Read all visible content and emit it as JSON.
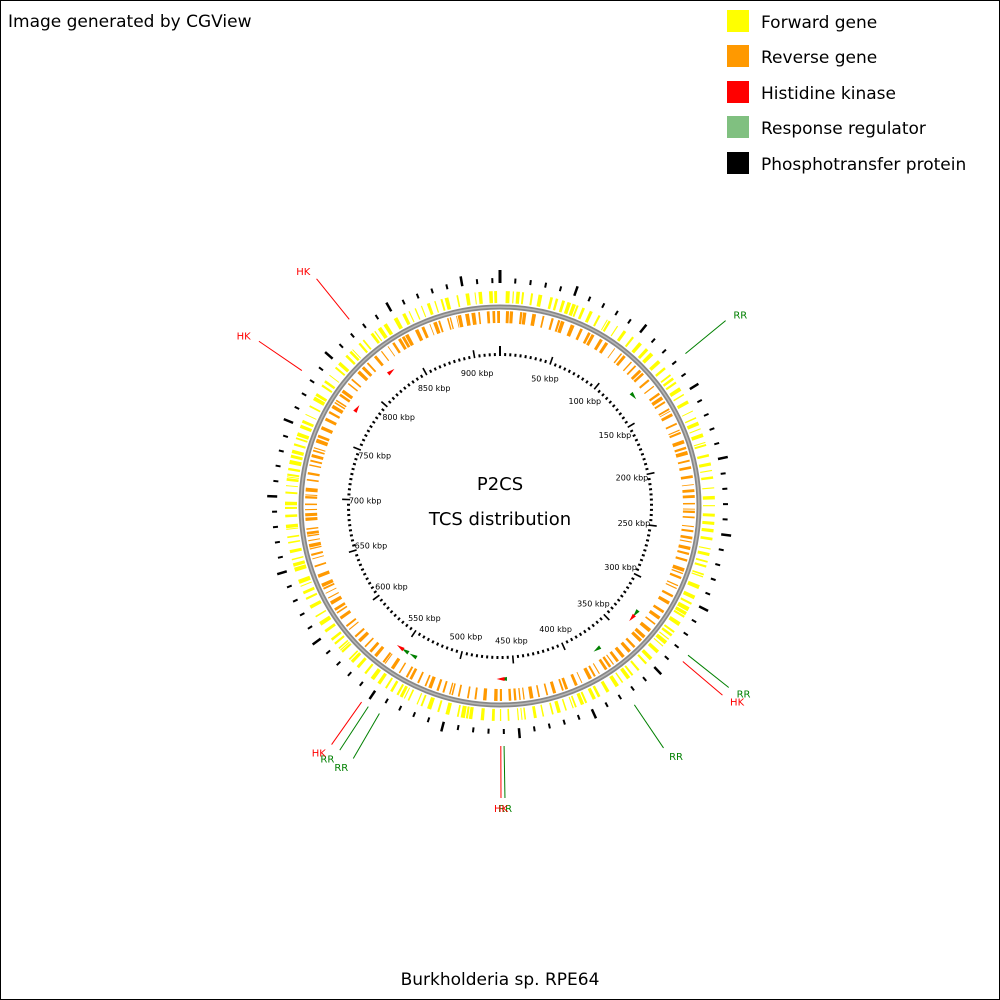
{
  "header": {
    "credit": "Image generated by CGView"
  },
  "center": {
    "line1": "P2CS",
    "line2": "TCS distribution"
  },
  "footer": {
    "organism": "Burkholderia sp. RPE64"
  },
  "legend": [
    {
      "label": "Forward gene",
      "color": "#ffff00"
    },
    {
      "label": "Reverse gene",
      "color": "#ff9900"
    },
    {
      "label": "Histidine kinase",
      "color": "#ff0000"
    },
    {
      "label": "Response regulator",
      "color": "#80c080"
    },
    {
      "label": "Phosphotransfer protein",
      "color": "#000000"
    }
  ],
  "genome": {
    "length_kbp": 925,
    "tick_labels": [
      "50 kbp",
      "100 kbp",
      "150 kbp",
      "200 kbp",
      "250 kbp",
      "300 kbp",
      "350 kbp",
      "400 kbp",
      "450 kbp",
      "500 kbp",
      "550 kbp",
      "600 kbp",
      "650 kbp",
      "700 kbp",
      "750 kbp",
      "800 kbp",
      "850 kbp",
      "900 kbp"
    ],
    "tick_positions_kbp": [
      50,
      100,
      150,
      200,
      250,
      300,
      350,
      400,
      450,
      500,
      550,
      600,
      650,
      700,
      750,
      800,
      850,
      900
    ]
  },
  "features": [
    {
      "type": "RR",
      "label": "RR",
      "position_kbp": 130,
      "color": "#008000"
    },
    {
      "type": "RR",
      "label": "RR",
      "position_kbp": 330,
      "color": "#008000"
    },
    {
      "type": "HK",
      "label": "HK",
      "position_kbp": 335,
      "color": "#ff0000"
    },
    {
      "type": "RR",
      "label": "RR",
      "position_kbp": 375,
      "color": "#008000"
    },
    {
      "type": "RR",
      "label": "RR",
      "position_kbp": 460,
      "color": "#008000"
    },
    {
      "type": "HK",
      "label": "HK",
      "position_kbp": 462,
      "color": "#ff0000"
    },
    {
      "type": "RR",
      "label": "RR",
      "position_kbp": 540,
      "color": "#008000"
    },
    {
      "type": "RR",
      "label": "RR",
      "position_kbp": 548,
      "color": "#008000"
    },
    {
      "type": "HK",
      "label": "HK",
      "position_kbp": 553,
      "color": "#ff0000"
    },
    {
      "type": "HK",
      "label": "HK",
      "position_kbp": 782,
      "color": "#ff0000"
    },
    {
      "type": "HK",
      "label": "HK",
      "position_kbp": 825,
      "color": "#ff0000"
    }
  ]
}
